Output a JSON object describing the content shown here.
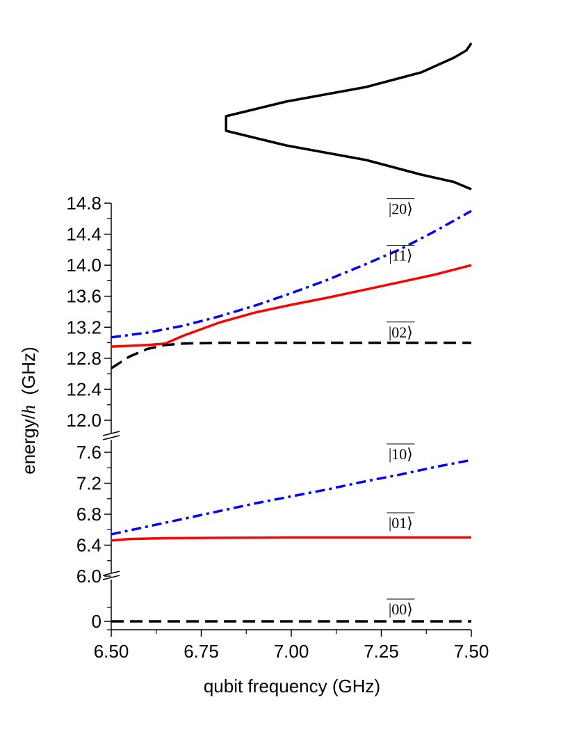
{
  "chart_data": {
    "type": "line",
    "xlabel": "qubit frequency (GHz)",
    "ylabel_prefix": "energy/",
    "ylabel_italic": "h",
    "ylabel_suffix": "  (GHz)",
    "xlim": [
      6.5,
      7.5
    ],
    "x_ticks": [
      "6.50",
      "6.75",
      "7.00",
      "7.25",
      "7.50"
    ],
    "y_panels": [
      {
        "range": [
          11.9,
          14.8
        ],
        "ticks": [
          "12.0",
          "12.4",
          "12.8",
          "13.2",
          "13.6",
          "14.0",
          "14.4",
          "14.8"
        ]
      },
      {
        "range": [
          5.95,
          7.75
        ],
        "ticks": [
          "6.0",
          "6.4",
          "6.8",
          "7.2",
          "7.6"
        ]
      },
      {
        "range": [
          -0.12,
          0.4
        ],
        "ticks": [
          "0"
        ]
      }
    ],
    "series": [
      {
        "label": "|20⟩",
        "color": "#0000ff",
        "style": "dashdot",
        "panel": 0,
        "x": [
          6.5,
          6.6,
          6.7,
          6.8,
          6.9,
          7.0,
          7.1,
          7.2,
          7.3,
          7.4,
          7.5
        ],
        "y": [
          13.07,
          13.13,
          13.22,
          13.34,
          13.48,
          13.64,
          13.81,
          14.0,
          14.2,
          14.44,
          14.7
        ]
      },
      {
        "label": "|11⟩",
        "color": "#ff0000",
        "style": "solid",
        "panel": 0,
        "x": [
          6.5,
          6.6,
          6.65,
          6.7,
          6.8,
          6.9,
          7.0,
          7.1,
          7.2,
          7.3,
          7.4,
          7.5
        ],
        "y": [
          12.95,
          12.97,
          12.99,
          13.09,
          13.26,
          13.39,
          13.49,
          13.58,
          13.68,
          13.78,
          13.88,
          14.0
        ]
      },
      {
        "label": "|02⟩",
        "color": "#000000",
        "style": "dashed",
        "panel": 0,
        "x": [
          6.5,
          6.55,
          6.6,
          6.65,
          6.7,
          6.8,
          7.0,
          7.25,
          7.5
        ],
        "y": [
          12.67,
          12.82,
          12.92,
          12.97,
          12.99,
          13.0,
          13.0,
          13.0,
          13.0
        ]
      },
      {
        "label": "|10⟩",
        "color": "#0000ff",
        "style": "dashdot",
        "panel": 1,
        "x": [
          6.5,
          6.6,
          6.7,
          6.8,
          6.9,
          7.0,
          7.1,
          7.2,
          7.3,
          7.4,
          7.5
        ],
        "y": [
          6.54,
          6.64,
          6.74,
          6.84,
          6.94,
          7.03,
          7.12,
          7.22,
          7.31,
          7.41,
          7.5
        ]
      },
      {
        "label": "|01⟩",
        "color": "#ff0000",
        "style": "solid",
        "panel": 1,
        "x": [
          6.5,
          6.55,
          6.65,
          6.8,
          7.0,
          7.25,
          7.5
        ],
        "y": [
          6.46,
          6.48,
          6.49,
          6.495,
          6.5,
          6.5,
          6.5
        ]
      },
      {
        "label": "|00⟩",
        "color": "#000000",
        "style": "dashed",
        "panel": 2,
        "x": [
          6.5,
          7.5
        ],
        "y": [
          0.0,
          0.0
        ]
      }
    ],
    "labels": [
      {
        "text": "|20⟩",
        "x": 7.3,
        "panel": 0,
        "y": 14.66
      },
      {
        "text": "|11⟩",
        "x": 7.3,
        "panel": 0,
        "y": 14.06
      },
      {
        "text": "|02⟩",
        "x": 7.3,
        "panel": 0,
        "y": 13.07
      },
      {
        "text": "|10⟩",
        "x": 7.3,
        "panel": 1,
        "y": 7.51
      },
      {
        "text": "|01⟩",
        "x": 7.3,
        "panel": 1,
        "y": 6.62
      },
      {
        "text": "|00⟩",
        "x": 7.3,
        "panel": 2,
        "y": 0.1
      }
    ],
    "inset": {
      "type": "line",
      "description_shape": "resonance dip",
      "x": [
        0,
        0.05,
        0.1,
        0.2,
        0.3,
        0.4,
        0.5,
        0.6,
        0.7,
        0.8,
        0.9,
        0.95,
        1
      ],
      "y": [
        1.0,
        0.98,
        0.93,
        0.8,
        0.58,
        0.26,
        0.02,
        0.02,
        0.26,
        0.58,
        0.8,
        0.93,
        1.0
      ]
    }
  }
}
